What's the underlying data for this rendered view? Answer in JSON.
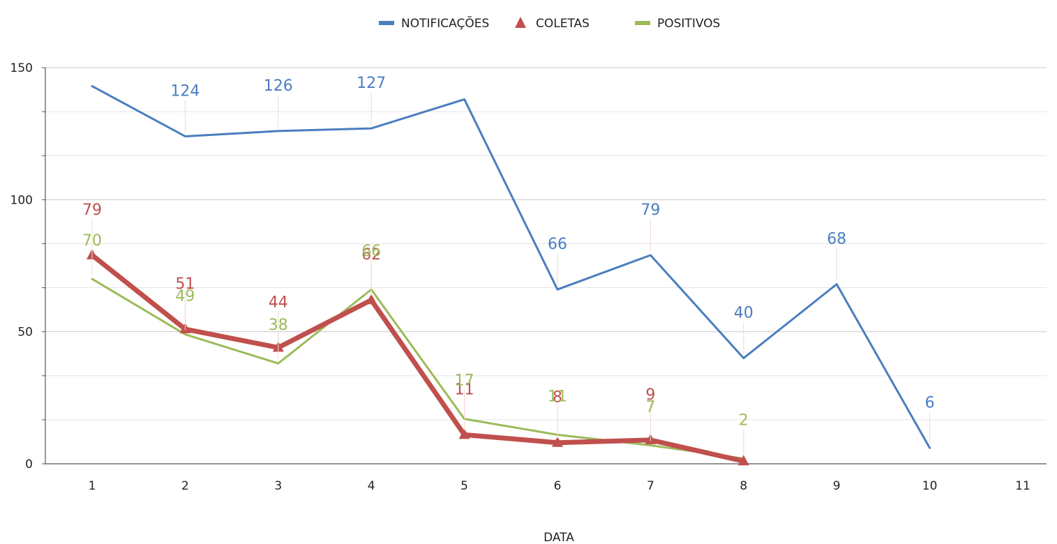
{
  "chart_data": {
    "type": "line",
    "title": "",
    "xlabel": "DATA",
    "ylabel": "",
    "categories": [
      "1",
      "2",
      "3",
      "4",
      "5",
      "6",
      "7",
      "8",
      "9",
      "10",
      "11"
    ],
    "ylim": [
      0,
      150
    ],
    "yticks": [
      "0",
      "50",
      "100",
      "150"
    ],
    "grid": true,
    "legend_position": "top",
    "series": [
      {
        "name": "NOTIFICAÇÕES",
        "color": "#4a7ebf",
        "marker": "none",
        "values": [
          143,
          124,
          126,
          127,
          138,
          66,
          79,
          40,
          68,
          6,
          null
        ],
        "labels": [
          "",
          "124",
          "126",
          "127",
          "",
          "66",
          "79",
          "40",
          "68",
          "6",
          ""
        ]
      },
      {
        "name": "COLETAS",
        "color": "#c0504d",
        "marker": "triangle",
        "values": [
          79,
          51,
          44,
          62,
          11,
          8,
          9,
          1,
          null,
          null,
          null
        ],
        "labels": [
          "79",
          "51",
          "44",
          "62",
          "11",
          "8",
          "9",
          "",
          "",
          "",
          ""
        ]
      },
      {
        "name": "POSITIVOS",
        "color": "#9bbb59",
        "marker": "none",
        "values": [
          70,
          49,
          38,
          66,
          17,
          11,
          7,
          2,
          null,
          null,
          null
        ],
        "labels": [
          "70",
          "49",
          "38",
          "66",
          "17",
          "11",
          "7",
          "2",
          "",
          "",
          ""
        ]
      }
    ]
  }
}
